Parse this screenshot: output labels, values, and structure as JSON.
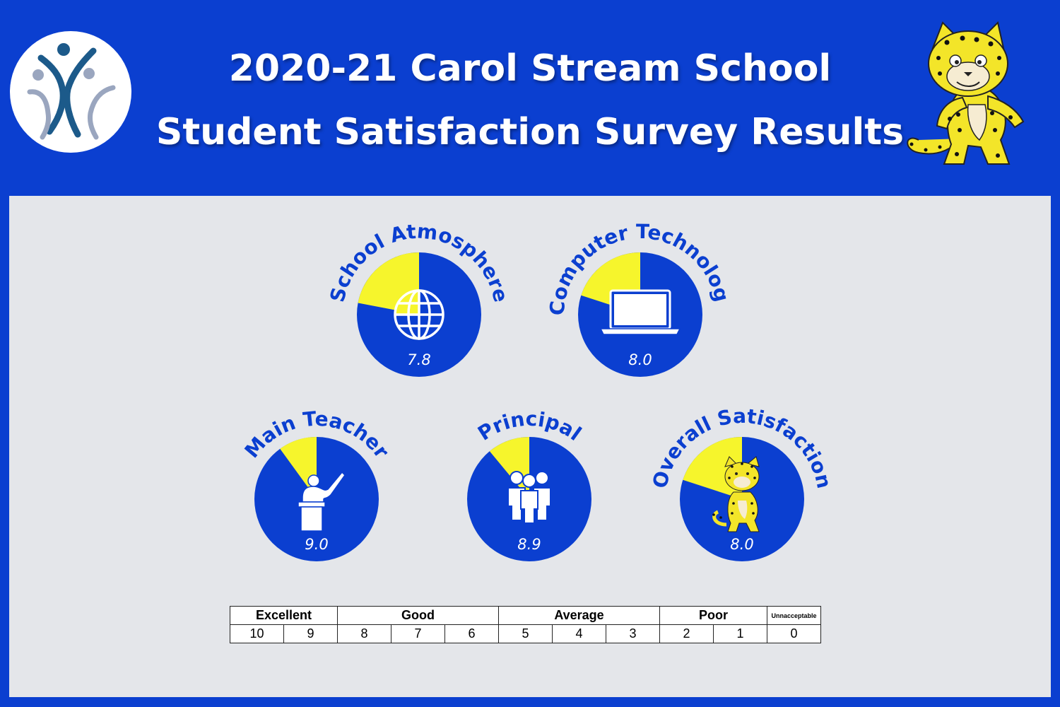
{
  "title": {
    "line1": "2020-21 Carol Stream School",
    "line2": "Student Satisfaction Survey Results"
  },
  "colors": {
    "background": "#0b3fd0",
    "panel": "#e4e6ea",
    "pie_main": "#0b3fd0",
    "pie_slice": "#f6f52c",
    "label": "#0b3fd0"
  },
  "chart_data": [
    {
      "type": "pie",
      "title": "School Atmosphere",
      "value": 7.8,
      "max": 10,
      "value_label": "7.8",
      "icon": "globe-icon"
    },
    {
      "type": "pie",
      "title": "Computer Technology",
      "value": 8.0,
      "max": 10,
      "value_label": "8.0",
      "icon": "laptop-icon"
    },
    {
      "type": "pie",
      "title": "Main Teacher",
      "value": 9.0,
      "max": 10,
      "value_label": "9.0",
      "icon": "teacher-icon"
    },
    {
      "type": "pie",
      "title": "Principal",
      "value": 8.9,
      "max": 10,
      "value_label": "8.9",
      "icon": "group-icon"
    },
    {
      "type": "pie",
      "title": "Overall Satisfaction",
      "value": 8.0,
      "max": 10,
      "value_label": "8.0",
      "icon": "mascot-icon"
    }
  ],
  "scale": {
    "categories": [
      {
        "label": "Excellent",
        "span": 2
      },
      {
        "label": "Good",
        "span": 3
      },
      {
        "label": "Average",
        "span": 3
      },
      {
        "label": "Poor",
        "span": 2
      },
      {
        "label": "Unnacceptable",
        "span": 1
      }
    ],
    "values": [
      "10",
      "9",
      "8",
      "7",
      "6",
      "5",
      "4",
      "3",
      "2",
      "1",
      "0"
    ]
  }
}
